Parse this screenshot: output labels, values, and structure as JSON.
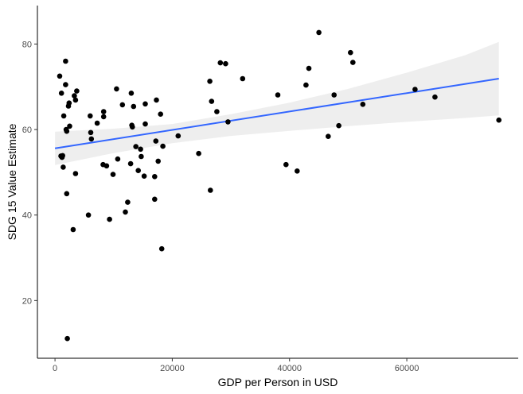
{
  "chart_data": {
    "type": "scatter",
    "xlabel": "GDP per Person in USD",
    "ylabel": "SDG 15 Value Estimate",
    "xlim": [
      -3000,
      79000
    ],
    "ylim": [
      6.5,
      89
    ],
    "xticks": [
      0,
      20000,
      40000,
      60000
    ],
    "yticks": [
      20,
      40,
      60,
      80
    ],
    "xtick_labels": [
      "0",
      "20000",
      "40000",
      "60000"
    ],
    "ytick_labels": [
      "20",
      "40",
      "60",
      "80"
    ],
    "grid": false,
    "legend": "none",
    "points": [
      [
        800,
        72.5
      ],
      [
        1000,
        53.8
      ],
      [
        1100,
        68.5
      ],
      [
        1200,
        53.5
      ],
      [
        1300,
        53.9
      ],
      [
        1400,
        51.2
      ],
      [
        1500,
        63.2
      ],
      [
        1800,
        76.0
      ],
      [
        1800,
        70.5
      ],
      [
        1900,
        60.0
      ],
      [
        2000,
        59.6
      ],
      [
        2000,
        45.0
      ],
      [
        2100,
        11.1
      ],
      [
        2300,
        65.5
      ],
      [
        2400,
        66.2
      ],
      [
        2500,
        60.8
      ],
      [
        3100,
        36.6
      ],
      [
        3300,
        67.9
      ],
      [
        3500,
        66.9
      ],
      [
        3700,
        69.0
      ],
      [
        3500,
        49.7
      ],
      [
        5700,
        40.0
      ],
      [
        6000,
        63.2
      ],
      [
        6100,
        59.3
      ],
      [
        6200,
        57.8
      ],
      [
        7200,
        61.5
      ],
      [
        8200,
        51.8
      ],
      [
        8300,
        64.2
      ],
      [
        8300,
        63.0
      ],
      [
        8800,
        51.5
      ],
      [
        9300,
        39.0
      ],
      [
        9900,
        49.5
      ],
      [
        10500,
        69.5
      ],
      [
        10700,
        53.1
      ],
      [
        11500,
        65.8
      ],
      [
        12000,
        40.7
      ],
      [
        12400,
        43.0
      ],
      [
        12900,
        52.0
      ],
      [
        13000,
        68.5
      ],
      [
        13100,
        61.0
      ],
      [
        13200,
        60.6
      ],
      [
        13400,
        65.4
      ],
      [
        13800,
        56.0
      ],
      [
        14200,
        50.4
      ],
      [
        14600,
        55.4
      ],
      [
        14700,
        53.7
      ],
      [
        15200,
        49.1
      ],
      [
        15400,
        61.3
      ],
      [
        15400,
        66.0
      ],
      [
        17000,
        49.0
      ],
      [
        17000,
        43.7
      ],
      [
        17200,
        57.3
      ],
      [
        17300,
        66.9
      ],
      [
        17600,
        52.6
      ],
      [
        18000,
        63.6
      ],
      [
        18200,
        32.1
      ],
      [
        18400,
        56.1
      ],
      [
        21000,
        58.5
      ],
      [
        24500,
        54.4
      ],
      [
        26400,
        71.3
      ],
      [
        26500,
        45.8
      ],
      [
        26700,
        66.6
      ],
      [
        27600,
        64.2
      ],
      [
        28200,
        75.6
      ],
      [
        29100,
        75.4
      ],
      [
        29500,
        61.8
      ],
      [
        32000,
        71.9
      ],
      [
        38000,
        68.1
      ],
      [
        39400,
        51.8
      ],
      [
        41300,
        50.3
      ],
      [
        42800,
        70.4
      ],
      [
        43300,
        74.3
      ],
      [
        45000,
        82.7
      ],
      [
        46600,
        58.4
      ],
      [
        47600,
        68.1
      ],
      [
        48400,
        60.9
      ],
      [
        50400,
        78.0
      ],
      [
        50800,
        75.7
      ],
      [
        52500,
        65.9
      ],
      [
        61400,
        69.4
      ],
      [
        64800,
        67.6
      ],
      [
        75700,
        62.2
      ]
    ],
    "trend_line": {
      "color": "#3366ff",
      "x": [
        0,
        75700
      ],
      "y": [
        55.6,
        71.9
      ]
    },
    "confidence_band": {
      "color": "#ebebeb",
      "x": [
        0,
        10000,
        20000,
        30000,
        40000,
        50000,
        60000,
        70000,
        75700
      ],
      "lower": [
        51.7,
        54.5,
        56.8,
        58.5,
        59.7,
        60.8,
        61.8,
        62.7,
        63.3
      ],
      "upper": [
        59.5,
        60.2,
        61.3,
        63.6,
        66.3,
        69.5,
        73.3,
        77.4,
        80.5
      ]
    },
    "point_color": "#000000"
  }
}
